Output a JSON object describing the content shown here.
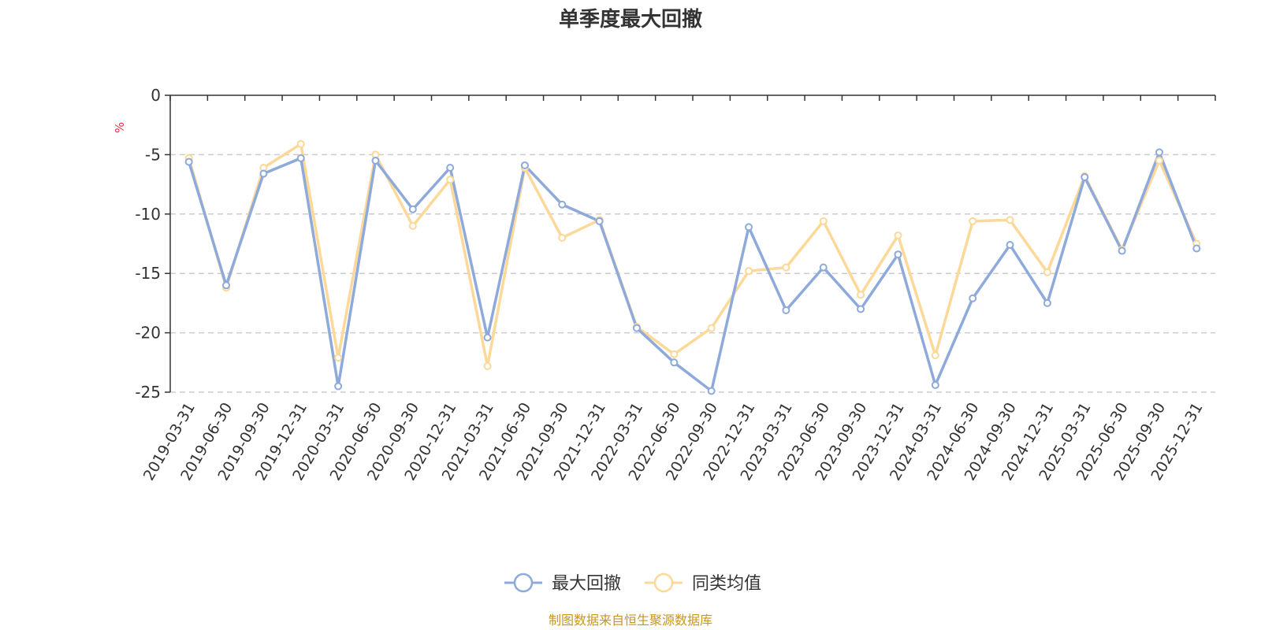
{
  "chart_data": {
    "type": "line",
    "title": "单季度最大回撤",
    "ylabel": "%",
    "ylim": [
      -25,
      0
    ],
    "yticks": [
      0,
      -5,
      -10,
      -15,
      -20,
      -25
    ],
    "categories": [
      "2019-03-31",
      "2019-06-30",
      "2019-09-30",
      "2019-12-31",
      "2020-03-31",
      "2020-06-30",
      "2020-09-30",
      "2020-12-31",
      "2021-03-31",
      "2021-06-30",
      "2021-09-30",
      "2021-12-31",
      "2022-03-31",
      "2022-06-30",
      "2022-09-30",
      "2022-12-31",
      "2023-03-31",
      "2023-06-30",
      "2023-09-30",
      "2023-12-31",
      "2024-03-31",
      "2024-06-30",
      "2024-09-30",
      "2024-12-31",
      "2025-03-31",
      "2025-06-30",
      "2025-09-30",
      "2025-12-31"
    ],
    "series": [
      {
        "name": "最大回撤",
        "color": "#8eaadb",
        "values": [
          -5.6,
          -16.0,
          -6.6,
          -5.3,
          -24.5,
          -5.5,
          -9.6,
          -6.1,
          -20.4,
          -5.9,
          -9.2,
          -10.6,
          -19.6,
          -22.5,
          -24.9,
          -11.1,
          -18.1,
          -14.5,
          -18.0,
          -13.4,
          -24.4,
          -17.1,
          -12.6,
          -17.5,
          -6.9,
          -13.1,
          -4.8,
          -12.9
        ]
      },
      {
        "name": "同类均值",
        "color": "#fcd899",
        "values": [
          -5.3,
          -16.2,
          -6.1,
          -4.1,
          -22.1,
          -5.0,
          -11.0,
          -7.1,
          -22.8,
          -6.1,
          -12.0,
          -10.5,
          -19.5,
          -21.8,
          -19.6,
          -14.8,
          -14.5,
          -10.6,
          -16.8,
          -11.8,
          -21.9,
          -10.6,
          -10.5,
          -14.9,
          -6.8,
          -13.0,
          -5.5,
          -12.5
        ]
      }
    ],
    "legend": "bottom-center",
    "grid": "horizontal-dashed"
  },
  "source_text": "制图数据来自恒生聚源数据库"
}
